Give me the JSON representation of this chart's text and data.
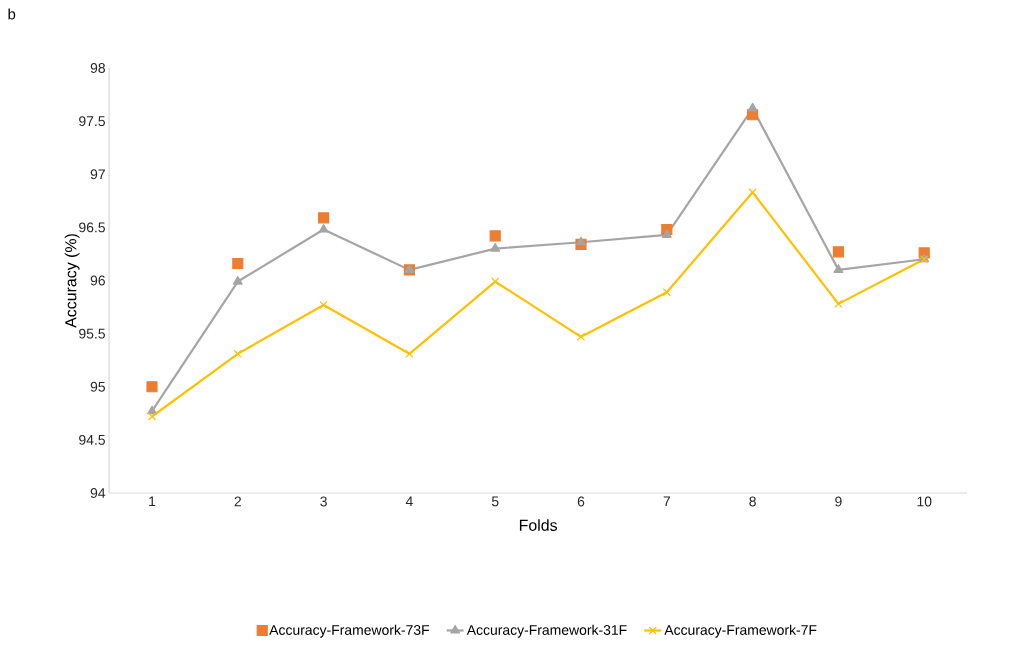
{
  "chart_data": {
    "type": "line",
    "xlabel": "Folds",
    "ylabel": "Accuracy (%)",
    "annotations": [
      "b"
    ],
    "categories": [
      "1",
      "2",
      "3",
      "4",
      "5",
      "6",
      "7",
      "8",
      "9",
      "10"
    ],
    "ylim": [
      94,
      98
    ],
    "yticks": [
      94,
      94.5,
      95,
      95.5,
      96,
      96.5,
      97,
      97.5,
      98
    ],
    "grid": false,
    "legend": "bottom",
    "series": [
      {
        "name": "Accuracy-Framework-73F",
        "type": "scatter",
        "marker": "square",
        "color": "#ed7d31",
        "values": [
          95.0,
          96.16,
          96.59,
          96.1,
          96.42,
          96.34,
          96.48,
          97.56,
          96.27,
          96.26
        ]
      },
      {
        "name": "Accuracy-Framework-31F",
        "marker": "triangle",
        "color": "#a5a5a5",
        "values": [
          94.77,
          95.99,
          96.48,
          96.1,
          96.3,
          96.36,
          96.43,
          97.62,
          96.1,
          96.2
        ]
      },
      {
        "name": "Accuracy-Framework-7F",
        "marker": "cross",
        "color": "#ffc000",
        "values": [
          94.72,
          95.31,
          95.77,
          95.31,
          95.99,
          95.47,
          95.89,
          96.83,
          95.78,
          96.2
        ]
      }
    ]
  }
}
